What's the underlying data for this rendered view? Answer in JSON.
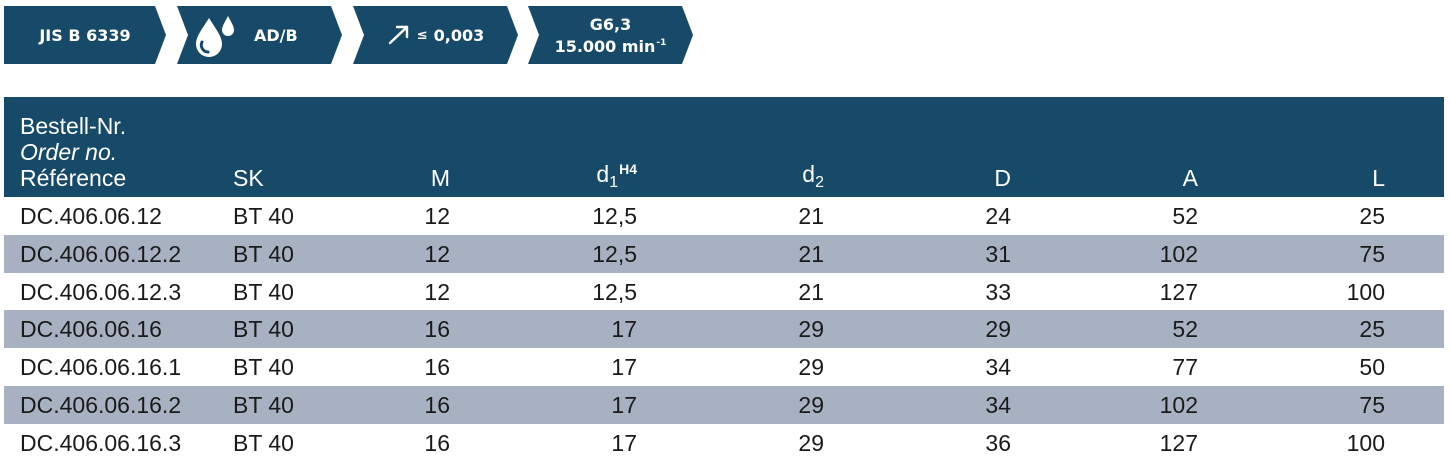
{
  "badges": {
    "standard": "JIS B 6339",
    "coolant": "AD/B",
    "runout_prefix": "≤",
    "runout_value": "0,003",
    "balance_grade": "G6,3",
    "balance_speed": "15.000 min",
    "balance_speed_exp": "-1",
    "icons": [
      "coolant-drops-icon",
      "runout-arrow-icon"
    ]
  },
  "table": {
    "header": {
      "order_de": "Bestell-Nr.",
      "order_en": "Order no.",
      "order_fr": "Référence",
      "sk": "SK",
      "m": "M",
      "d1": "d",
      "d1_sub": "1",
      "d1_sup": "H4",
      "d2": "d",
      "d2_sub": "2",
      "D": "D",
      "A": "A",
      "L": "L"
    },
    "rows": [
      {
        "id": "DC.406.06.12",
        "sk": "BT 40",
        "m": "12",
        "d1": "12,5",
        "d2": "21",
        "D": "24",
        "A": "52",
        "L": "25"
      },
      {
        "id": "DC.406.06.12.2",
        "sk": "BT 40",
        "m": "12",
        "d1": "12,5",
        "d2": "21",
        "D": "31",
        "A": "102",
        "L": "75"
      },
      {
        "id": "DC.406.06.12.3",
        "sk": "BT 40",
        "m": "12",
        "d1": "12,5",
        "d2": "21",
        "D": "33",
        "A": "127",
        "L": "100"
      },
      {
        "id": "DC.406.06.16",
        "sk": "BT 40",
        "m": "16",
        "d1": "17",
        "d2": "29",
        "D": "29",
        "A": "52",
        "L": "25"
      },
      {
        "id": "DC.406.06.16.1",
        "sk": "BT 40",
        "m": "16",
        "d1": "17",
        "d2": "29",
        "D": "34",
        "A": "77",
        "L": "50"
      },
      {
        "id": "DC.406.06.16.2",
        "sk": "BT 40",
        "m": "16",
        "d1": "17",
        "d2": "29",
        "D": "34",
        "A": "102",
        "L": "75"
      },
      {
        "id": "DC.406.06.16.3",
        "sk": "BT 40",
        "m": "16",
        "d1": "17",
        "d2": "29",
        "D": "36",
        "A": "127",
        "L": "100"
      }
    ]
  },
  "colors": {
    "header_bg": "#174a68",
    "stripe_bg": "#a8b1c2",
    "text": "#1a1a1a"
  }
}
